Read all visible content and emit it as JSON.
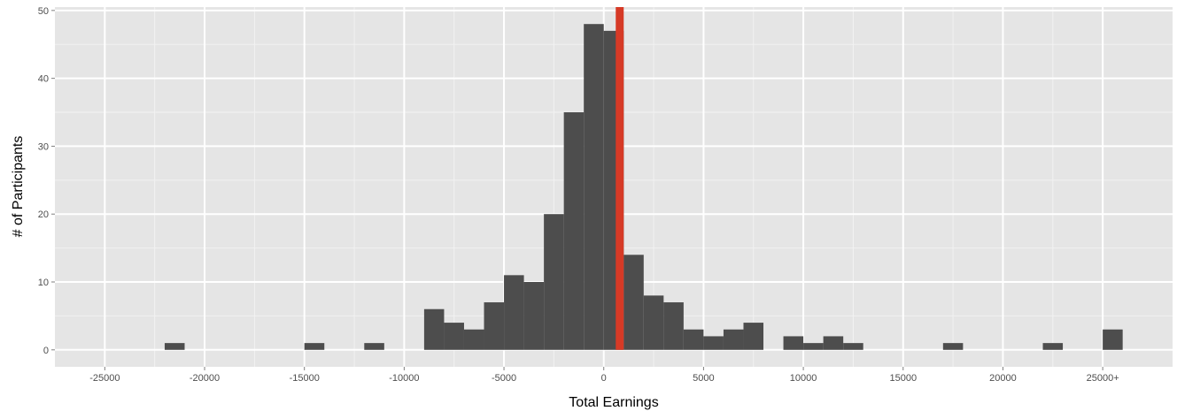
{
  "chart_data": {
    "type": "bar",
    "subtype": "histogram",
    "xlabel": "Total Earnings",
    "ylabel": "# of Participants",
    "xlim": [
      -27500,
      28500
    ],
    "ylim": [
      -2.5,
      50.5
    ],
    "x_ticks": [
      {
        "value": -25000,
        "label": "-25000"
      },
      {
        "value": -20000,
        "label": "-20000"
      },
      {
        "value": -15000,
        "label": "-15000"
      },
      {
        "value": -10000,
        "label": "-10000"
      },
      {
        "value": -5000,
        "label": "-5000"
      },
      {
        "value": 0,
        "label": "0"
      },
      {
        "value": 5000,
        "label": "5000"
      },
      {
        "value": 10000,
        "label": "10000"
      },
      {
        "value": 15000,
        "label": "15000"
      },
      {
        "value": 20000,
        "label": "20000"
      },
      {
        "value": 25000,
        "label": "25000+"
      }
    ],
    "y_ticks": [
      {
        "value": 0,
        "label": "0"
      },
      {
        "value": 10,
        "label": "10"
      },
      {
        "value": 20,
        "label": "20"
      },
      {
        "value": 30,
        "label": "30"
      },
      {
        "value": 40,
        "label": "40"
      },
      {
        "value": 50,
        "label": "50"
      }
    ],
    "bins": [
      {
        "x0": -22000,
        "x1": -21000,
        "count": 1
      },
      {
        "x0": -15000,
        "x1": -14000,
        "count": 1
      },
      {
        "x0": -12000,
        "x1": -11000,
        "count": 1
      },
      {
        "x0": -9000,
        "x1": -8000,
        "count": 6
      },
      {
        "x0": -8000,
        "x1": -7000,
        "count": 4
      },
      {
        "x0": -7000,
        "x1": -6000,
        "count": 3
      },
      {
        "x0": -6000,
        "x1": -5000,
        "count": 7
      },
      {
        "x0": -5000,
        "x1": -4000,
        "count": 11
      },
      {
        "x0": -4000,
        "x1": -3000,
        "count": 10
      },
      {
        "x0": -3000,
        "x1": -2000,
        "count": 20
      },
      {
        "x0": -2000,
        "x1": -1000,
        "count": 35
      },
      {
        "x0": -1000,
        "x1": 0,
        "count": 48
      },
      {
        "x0": 0,
        "x1": 1000,
        "count": 47
      },
      {
        "x0": 1000,
        "x1": 2000,
        "count": 14
      },
      {
        "x0": 2000,
        "x1": 3000,
        "count": 8
      },
      {
        "x0": 3000,
        "x1": 4000,
        "count": 7
      },
      {
        "x0": 4000,
        "x1": 5000,
        "count": 3
      },
      {
        "x0": 5000,
        "x1": 6000,
        "count": 2
      },
      {
        "x0": 6000,
        "x1": 7000,
        "count": 3
      },
      {
        "x0": 7000,
        "x1": 8000,
        "count": 4
      },
      {
        "x0": 9000,
        "x1": 10000,
        "count": 2
      },
      {
        "x0": 10000,
        "x1": 11000,
        "count": 1
      },
      {
        "x0": 11000,
        "x1": 12000,
        "count": 2
      },
      {
        "x0": 12000,
        "x1": 13000,
        "count": 1
      },
      {
        "x0": 17000,
        "x1": 18000,
        "count": 1
      },
      {
        "x0": 22000,
        "x1": 23000,
        "count": 1
      },
      {
        "x0": 25000,
        "x1": 26000,
        "count": 3
      }
    ],
    "reference_line": {
      "x": 800,
      "color": "#d63a26"
    },
    "grid": true,
    "legend": "none",
    "colors": {
      "bar": "#4d4d4d",
      "panel_background": "#e5e5e5",
      "grid_major": "#ffffff",
      "grid_minor": "#f2f2f2"
    }
  }
}
